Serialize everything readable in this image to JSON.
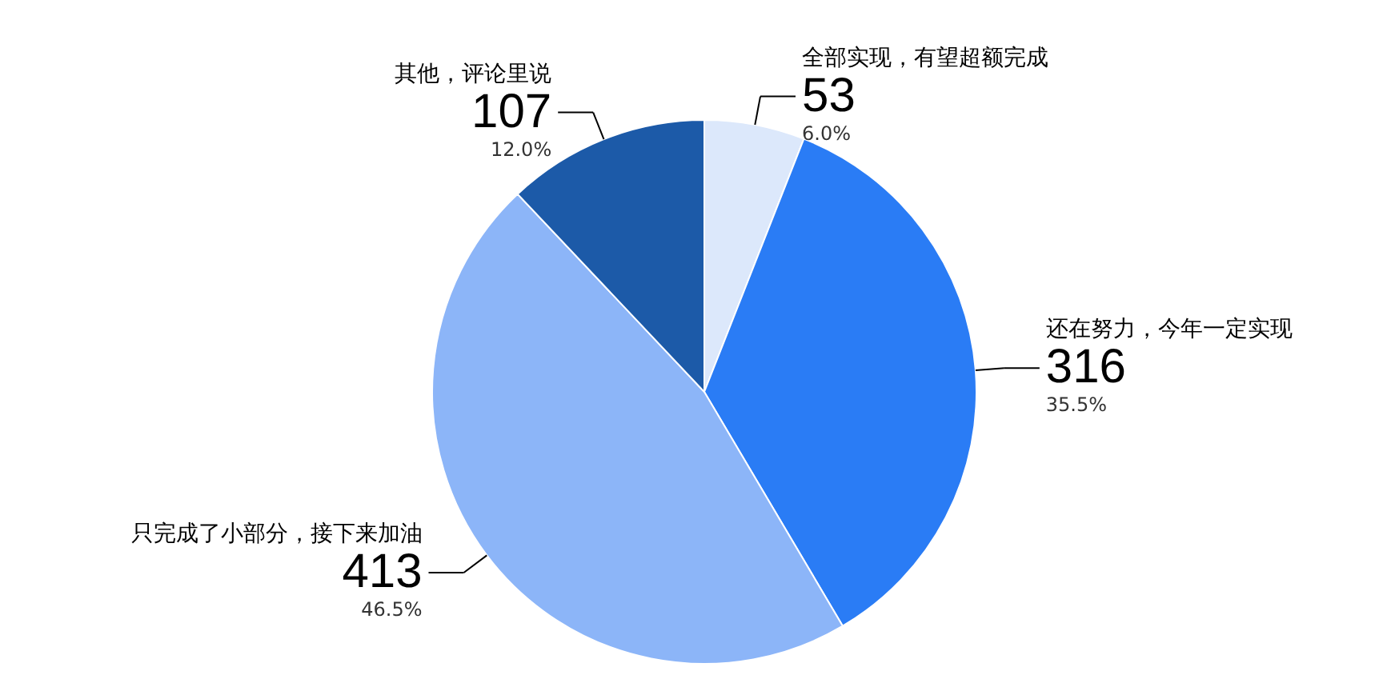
{
  "chart_data": {
    "type": "pie",
    "categories": [
      "全部实现，有望超额完成",
      "还在努力，今年一定实现",
      "只完成了小部分，接下来加油",
      "其他，评论里说"
    ],
    "values": [
      53,
      316,
      413,
      107
    ],
    "colors": [
      "#dce8fb",
      "#2a7cf5",
      "#8cb5f8",
      "#1c5aa8"
    ],
    "data_labels": true,
    "legend": false,
    "annotations": [
      {
        "text": "6.0%",
        "x": "全部实现，有望超额完成"
      },
      {
        "text": "35.5%",
        "x": "还在努力，今年一定实现"
      },
      {
        "text": "46.5%",
        "x": "只完成了小部分，接下来加油"
      },
      {
        "text": "12.0%",
        "x": "其他，评论里说"
      }
    ]
  }
}
